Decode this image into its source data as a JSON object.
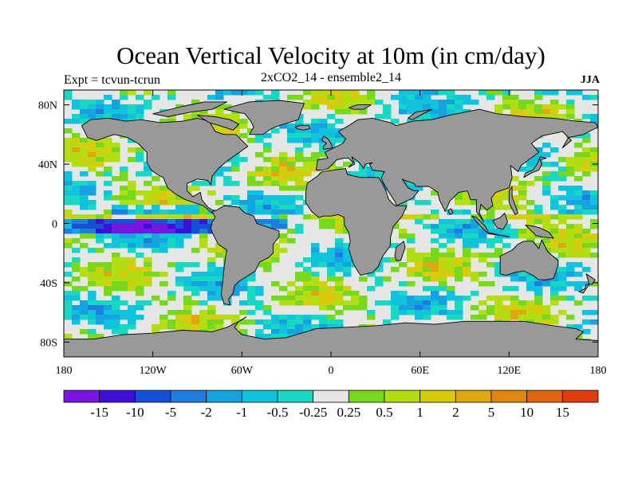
{
  "title": "Ocean Vertical Velocity at 10m (in cm/day)",
  "left_label": "Expt = tcvun-tcrun",
  "center_label": "2xCO2_14 - ensemble2_14",
  "right_label": "JJA",
  "map": {
    "projection": "cylindrical-equidistant",
    "lon_range": [
      -180,
      180
    ],
    "lat_range": [
      -90,
      90
    ],
    "land_color": "#999999",
    "coastline_color": "#000000",
    "x_ticks": [
      {
        "lon": -180,
        "label": "180"
      },
      {
        "lon": -120,
        "label": "120W"
      },
      {
        "lon": -60,
        "label": "60W"
      },
      {
        "lon": 0,
        "label": "0"
      },
      {
        "lon": 60,
        "label": "60E"
      },
      {
        "lon": 120,
        "label": "120E"
      },
      {
        "lon": 180,
        "label": "180"
      }
    ],
    "y_ticks": [
      {
        "lat": 80,
        "label": "80N"
      },
      {
        "lat": 40,
        "label": "40N"
      },
      {
        "lat": 0,
        "label": "0"
      },
      {
        "lat": -40,
        "label": "40S"
      },
      {
        "lat": -80,
        "label": "80S"
      }
    ]
  },
  "colorbar": {
    "colors": [
      "#7a16e0",
      "#3c10d6",
      "#1450d8",
      "#1e7ee0",
      "#14a2e0",
      "#10c2dc",
      "#18d8c4",
      "#e6e6e6",
      "#78d81e",
      "#b4de14",
      "#d8cc10",
      "#e0a810",
      "#e08810",
      "#e06410",
      "#e03c10"
    ],
    "labels": [
      "-15",
      "-10",
      "-5",
      "-2",
      "-1",
      "-0.5",
      "-0.25",
      "0.25",
      "0.5",
      "1",
      "2",
      "5",
      "10",
      "15"
    ]
  }
}
